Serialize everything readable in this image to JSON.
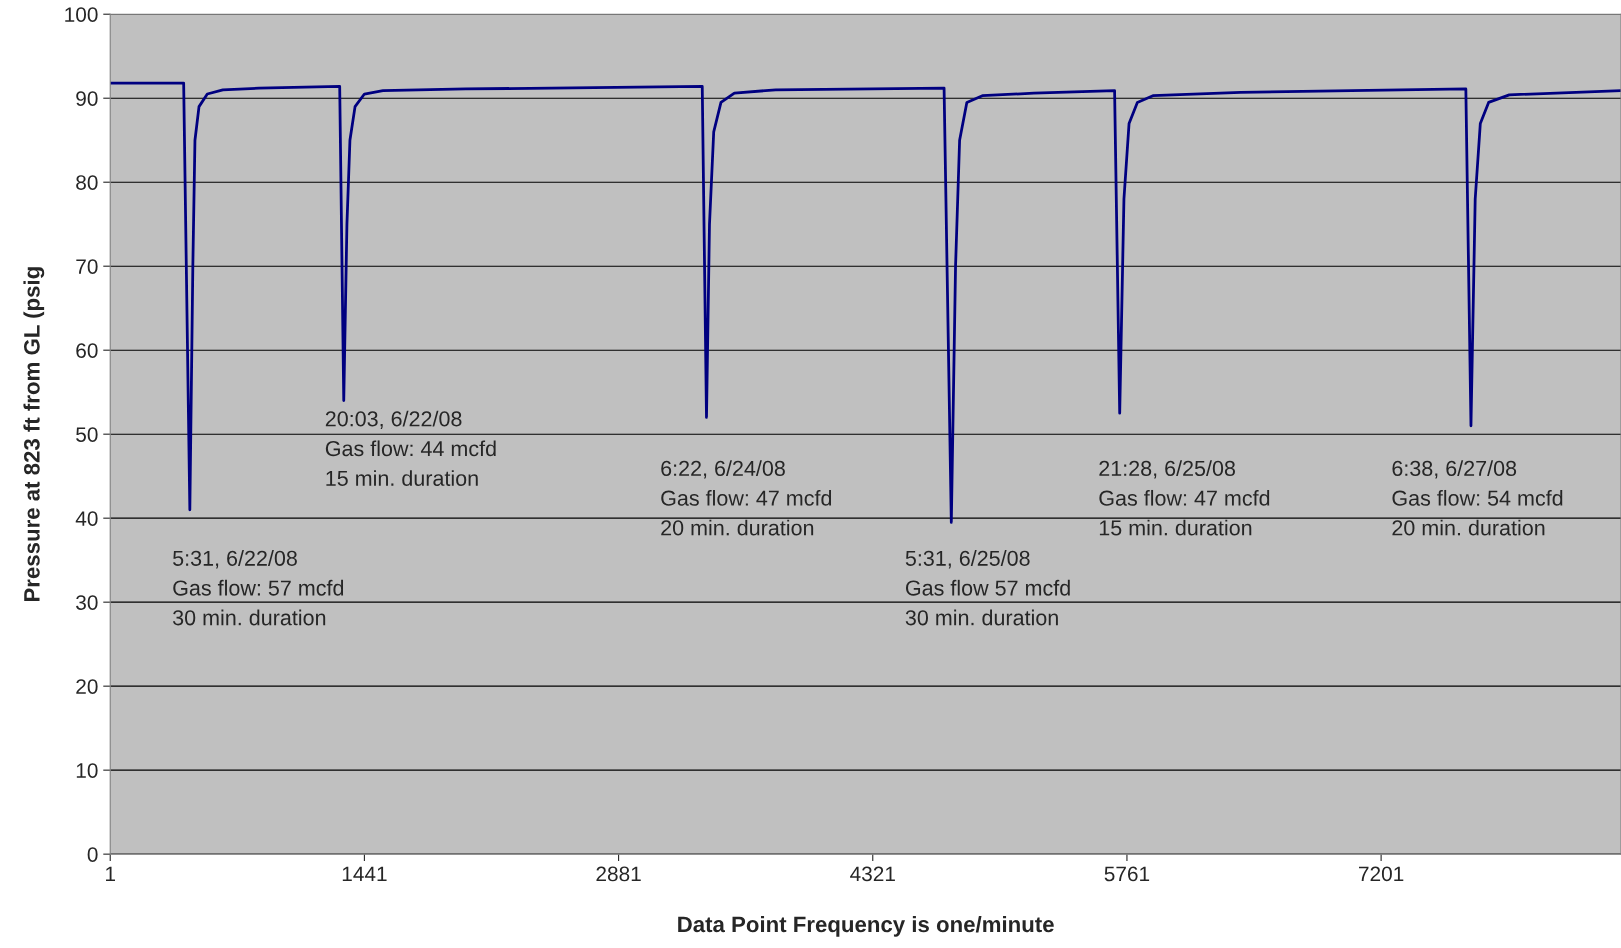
{
  "chart_data": {
    "type": "line",
    "xlabel": "Data Point Frequency is one/minute",
    "ylabel": "Pressure at 823 ft from GL (psig",
    "xlim": [
      1,
      8560
    ],
    "xticks": [
      1,
      1441,
      2881,
      4321,
      5761,
      7201
    ],
    "ylim": [
      0,
      100
    ],
    "yticks": [
      0,
      10,
      20,
      30,
      40,
      50,
      60,
      70,
      80,
      90,
      100
    ],
    "grid": "y",
    "legend": false,
    "series": [
      {
        "color": "#000080",
        "x": [
          1,
          417,
          452,
          469,
          481,
          504,
          551,
          639,
          844,
          1301,
          1324,
          1342,
          1359,
          1388,
          1441,
          1546,
          2015,
          3355,
          3379,
          3396,
          3420,
          3461,
          3537,
          3771,
          4725,
          4766,
          4790,
          4813,
          4854,
          4942,
          5234,
          5691,
          5720,
          5744,
          5773,
          5820,
          5908,
          6405,
          7681,
          7710,
          7734,
          7763,
          7810,
          7927,
          8560
        ],
        "values": [
          91.8,
          91.8,
          41,
          70,
          85,
          89,
          90.5,
          91,
          91.2,
          91.4,
          54,
          75,
          85,
          89,
          90.5,
          90.9,
          91.1,
          91.4,
          52,
          75,
          86,
          89.5,
          90.6,
          91,
          91.2,
          39.5,
          70,
          85,
          89.5,
          90.3,
          90.6,
          90.9,
          52.5,
          78,
          87,
          89.5,
          90.3,
          90.7,
          91.1,
          51,
          78,
          87,
          89.5,
          90.4,
          90.9
        ]
      }
    ],
    "annotations": [
      "5:31, 6/22/08\nGas flow: 57 mcfd\n30 min. duration",
      "20:03, 6/22/08\nGas flow: 44 mcfd\n15 min. duration",
      "6:22, 6/24/08\nGas flow: 47 mcfd\n20 min. duration",
      "5:31, 6/25/08\nGas flow 57 mcfd\n30 min. duration",
      "21:28, 6/25/08\nGas flow: 47 mcfd\n15 min. duration",
      "6:38, 6/27/08\nGas flow: 54 mcfd\n20 min. duration"
    ]
  }
}
